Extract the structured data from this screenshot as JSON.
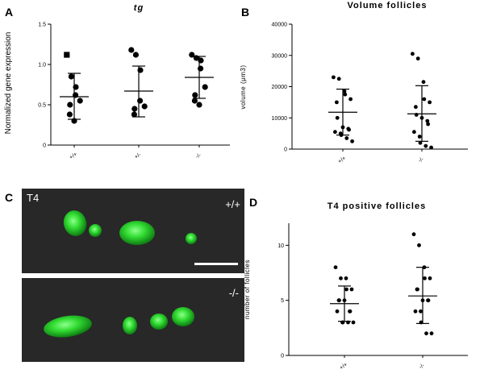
{
  "panels": {
    "A": {
      "letter": "A"
    },
    "B": {
      "letter": "B"
    },
    "C": {
      "letter": "C",
      "label_t4": "T4",
      "label_top": "+/+",
      "label_bottom": "-/-"
    },
    "D": {
      "letter": "D"
    }
  },
  "chart_data": [
    {
      "id": "A",
      "type": "scatter",
      "title": "tg",
      "ylabel": "Normalized gene expression",
      "categories": [
        "+/+",
        "+/-",
        "-/-"
      ],
      "ylim": [
        0,
        1.5
      ],
      "yticks": [
        0,
        0.5,
        1.0,
        1.5
      ],
      "ytick_labels": [
        "0",
        "0.5",
        "1.0",
        "1.5"
      ],
      "groups": [
        {
          "category": "+/+",
          "values": [
            1.12,
            0.85,
            0.72,
            0.62,
            0.55,
            0.5,
            0.38,
            0.3
          ],
          "mean": 0.6,
          "sd_low": 0.32,
          "sd_high": 0.89
        },
        {
          "category": "+/-",
          "values": [
            1.18,
            1.12,
            0.93,
            0.55,
            0.48,
            0.45,
            0.38
          ],
          "mean": 0.67,
          "sd_low": 0.35,
          "sd_high": 0.98
        },
        {
          "category": "-/-",
          "values": [
            1.12,
            1.08,
            1.05,
            0.95,
            0.72,
            0.62,
            0.55,
            0.5
          ],
          "mean": 0.84,
          "sd_low": 0.58,
          "sd_high": 1.1
        }
      ]
    },
    {
      "id": "B",
      "type": "scatter",
      "title": "Volume follicles",
      "ylabel": "volume (μm3)",
      "categories": [
        "+/+",
        "-/-"
      ],
      "ylim": [
        0,
        40000
      ],
      "yticks": [
        0,
        10000,
        20000,
        30000,
        40000
      ],
      "ytick_labels": [
        "0",
        "10000",
        "20000",
        "30000",
        "40000"
      ],
      "groups": [
        {
          "category": "+/+",
          "values": [
            23000,
            22500,
            18500,
            17500,
            16000,
            15000,
            10000,
            7000,
            6500,
            6200,
            5500,
            5000,
            4500,
            3500,
            2500
          ],
          "mean": 11800,
          "sd_low": 4500,
          "sd_high": 19200
        },
        {
          "category": "-/-",
          "values": [
            30500,
            29000,
            21500,
            16000,
            15000,
            13500,
            11000,
            10000,
            9000,
            8000,
            5500,
            4000,
            2000,
            1000,
            500
          ],
          "mean": 11300,
          "sd_low": 2500,
          "sd_high": 20300
        }
      ]
    },
    {
      "id": "D",
      "type": "scatter",
      "title": "T4 positive follicles",
      "ylabel": "number of follicles",
      "categories": [
        "+/+",
        "-/-"
      ],
      "ylim": [
        0,
        12
      ],
      "yticks": [
        0,
        5,
        10
      ],
      "ytick_labels": [
        "0",
        "5",
        "10"
      ],
      "groups": [
        {
          "category": "+/+",
          "values": [
            8,
            7,
            7,
            6,
            6,
            5,
            5,
            5,
            4,
            4,
            4,
            3,
            3,
            3,
            3
          ],
          "mean": 4.7,
          "sd_low": 3.1,
          "sd_high": 6.3
        },
        {
          "category": "-/-",
          "values": [
            11,
            10,
            8,
            7,
            7,
            6,
            6,
            5,
            5,
            5,
            4,
            4,
            3,
            2,
            2
          ],
          "mean": 5.4,
          "sd_low": 2.9,
          "sd_high": 8.0
        }
      ]
    }
  ]
}
